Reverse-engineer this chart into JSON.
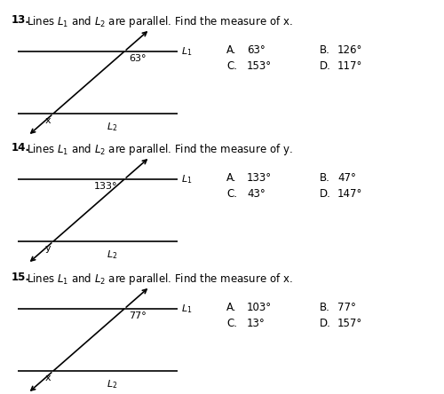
{
  "bg_color": "#ffffff",
  "problems": [
    {
      "number": "13",
      "question": "Lines $L_1$ and $L_2$ are parallel. Find the measure of x.",
      "angle_label": "63°",
      "var_label": "x",
      "choices": [
        [
          "A.",
          "63°",
          "B.",
          "126°"
        ],
        [
          "C.",
          "153°",
          "D.",
          "117°"
        ]
      ],
      "angle_side": "right",
      "var_side": "left"
    },
    {
      "number": "14",
      "question": "Lines $L_1$ and $L_2$ are parallel. Find the measure of y.",
      "angle_label": "133°",
      "var_label": "y",
      "choices": [
        [
          "A.",
          "133°",
          "B.",
          "47°"
        ],
        [
          "C.",
          "43°",
          "D.",
          "147°"
        ]
      ],
      "angle_side": "left",
      "var_side": "left"
    },
    {
      "number": "15",
      "question": "Lines $L_1$ and $L_2$ are parallel. Find the measure of x.",
      "angle_label": "77°",
      "var_label": "x",
      "choices": [
        [
          "A.",
          "103°",
          "B.",
          "77°"
        ],
        [
          "C.",
          "13°",
          "D.",
          "157°"
        ]
      ],
      "angle_side": "right",
      "var_side": "left"
    }
  ],
  "title_fontsize": 8.5,
  "body_fontsize": 8.5,
  "label_fontsize": 8.0,
  "num_bold": true
}
